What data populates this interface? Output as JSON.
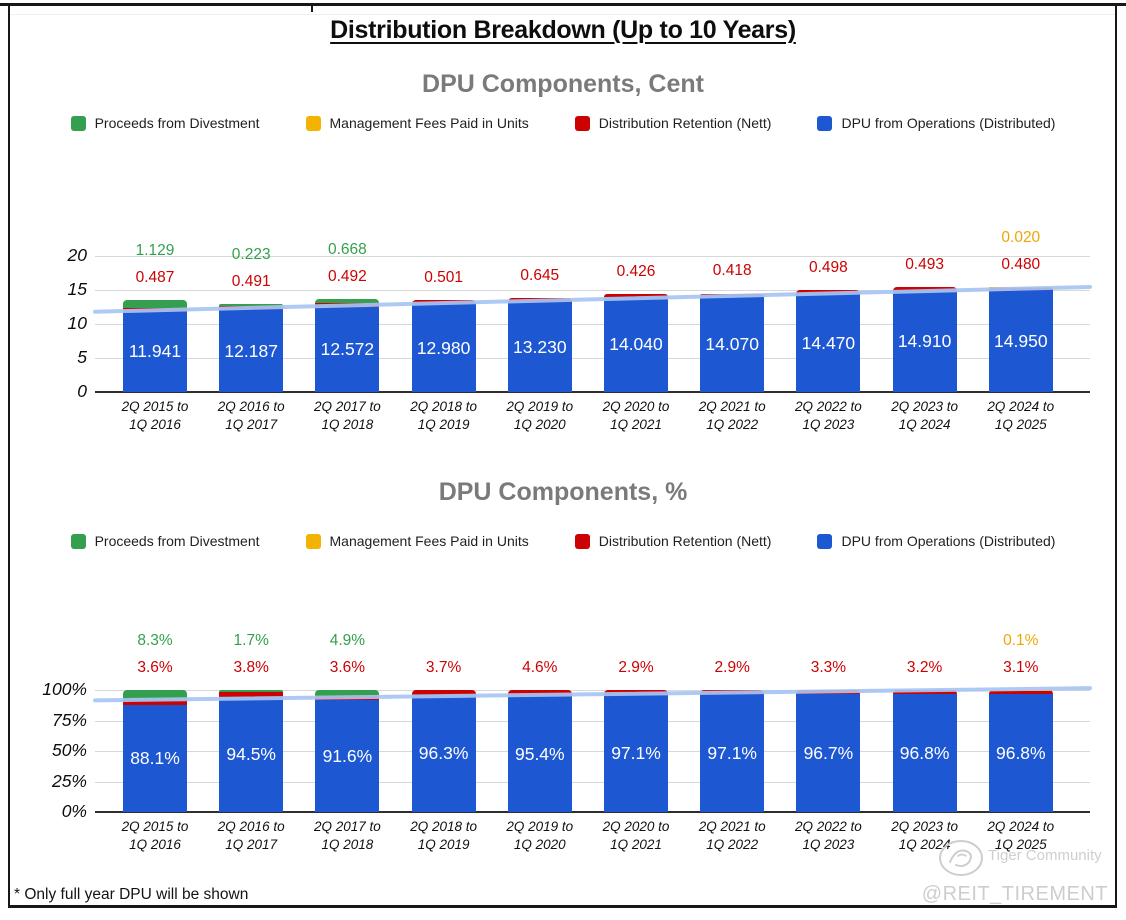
{
  "page": {
    "title": "Distribution Breakdown (Up to 10 Years)",
    "footnote": "* Only full year DPU will be shown",
    "watermark_community": "Tiger Community",
    "watermark_handle": "@REIT_TIREMENT"
  },
  "colors": {
    "divestment_green": "#34a04f",
    "mgmt_fees_yellow": "#f4b303",
    "retention_red": "#cc0202",
    "operations_blue": "#1d58d2",
    "trendline_blue": "#a8c6f4"
  },
  "legend": [
    {
      "label": "Proceeds from Divestment",
      "color": "#34a04f"
    },
    {
      "label": "Management Fees Paid in Units",
      "color": "#f4b303"
    },
    {
      "label": "Distribution Retention (Nett)",
      "color": "#cc0202"
    },
    {
      "label": "DPU from Operations (Distributed)",
      "color": "#1d58d2"
    }
  ],
  "chart_data": [
    {
      "type": "bar",
      "stacked": true,
      "title": "DPU Components, Cent",
      "grid": true,
      "legend_position": "top",
      "ylim": [
        0,
        20
      ],
      "y_ticks": [
        "20",
        "15",
        "10",
        "5",
        "0"
      ],
      "categories": [
        "2Q 2015 to 1Q 2016",
        "2Q 2016 to 1Q 2017",
        "2Q 2017 to 1Q 2018",
        "2Q 2018 to 1Q 2019",
        "2Q 2019 to 1Q 2020",
        "2Q 2020 to 1Q 2021",
        "2Q 2021 to 1Q 2022",
        "2Q 2022 to 1Q 2023",
        "2Q 2023 to 1Q 2024",
        "2Q 2024 to 1Q 2025"
      ],
      "series": [
        {
          "name": "DPU from Operations (Distributed)",
          "color": "#1d58d2",
          "label_color": "#ffffff",
          "label_pos": "inside",
          "values": [
            11.941,
            12.187,
            12.572,
            12.98,
            13.23,
            14.04,
            14.07,
            14.47,
            14.91,
            14.95
          ],
          "labels": [
            "11.941",
            "12.187",
            "12.572",
            "12.980",
            "13.230",
            "14.040",
            "14.070",
            "14.470",
            "14.910",
            "14.950"
          ]
        },
        {
          "name": "Distribution Retention (Nett)",
          "color": "#cc0202",
          "label_color": "#cc0202",
          "label_pos": "above1",
          "values": [
            0.487,
            0.491,
            0.492,
            0.501,
            0.645,
            0.426,
            0.418,
            0.498,
            0.493,
            0.48
          ],
          "labels": [
            "0.487",
            "0.491",
            "0.492",
            "0.501",
            "0.645",
            "0.426",
            "0.418",
            "0.498",
            "0.493",
            "0.480"
          ]
        },
        {
          "name": "Management Fees Paid in Units",
          "color": "#f4b303",
          "label_color": "#eda704",
          "label_pos": "above2",
          "values": [
            0,
            0,
            0,
            0,
            0,
            0,
            0,
            0,
            0,
            0.02
          ],
          "labels": [
            "",
            "",
            "",
            "",
            "",
            "",
            "",
            "",
            "",
            "0.020"
          ]
        },
        {
          "name": "Proceeds from Divestment",
          "color": "#34a04f",
          "label_color": "#34a04f",
          "label_pos": "above2",
          "values": [
            1.129,
            0.223,
            0.668,
            0,
            0,
            0,
            0,
            0,
            0,
            0
          ],
          "labels": [
            "1.129",
            "0.223",
            "0.668",
            "",
            "",
            "",
            "",
            "",
            "",
            ""
          ]
        }
      ],
      "trendline": {
        "color": "#a8c6f4",
        "start_value": 11.8,
        "end_value": 15.45
      }
    },
    {
      "type": "bar",
      "stacked": true,
      "title": "DPU Components, %",
      "grid": true,
      "legend_position": "top",
      "ylim": [
        0,
        100
      ],
      "y_ticks": [
        "100%",
        "75%",
        "50%",
        "25%",
        "0%"
      ],
      "categories": [
        "2Q 2015 to 1Q 2016",
        "2Q 2016 to 1Q 2017",
        "2Q 2017 to 1Q 2018",
        "2Q 2018 to 1Q 2019",
        "2Q 2019 to 1Q 2020",
        "2Q 2020 to 1Q 2021",
        "2Q 2021 to 1Q 2022",
        "2Q 2022 to 1Q 2023",
        "2Q 2023 to 1Q 2024",
        "2Q 2024 to 1Q 2025"
      ],
      "series": [
        {
          "name": "DPU from Operations (Distributed)",
          "color": "#1d58d2",
          "label_color": "#ffffff",
          "label_pos": "inside",
          "values": [
            88.1,
            94.5,
            91.6,
            96.3,
            95.4,
            97.1,
            97.1,
            96.7,
            96.8,
            96.8
          ],
          "labels": [
            "88.1%",
            "94.5%",
            "91.6%",
            "96.3%",
            "95.4%",
            "97.1%",
            "97.1%",
            "96.7%",
            "96.8%",
            "96.8%"
          ]
        },
        {
          "name": "Distribution Retention (Nett)",
          "color": "#cc0202",
          "label_color": "#cc0202",
          "label_pos": "above1",
          "values": [
            3.6,
            3.8,
            3.6,
            3.7,
            4.6,
            2.9,
            2.9,
            3.3,
            3.2,
            3.1
          ],
          "labels": [
            "3.6%",
            "3.8%",
            "3.6%",
            "3.7%",
            "4.6%",
            "2.9%",
            "2.9%",
            "3.3%",
            "3.2%",
            "3.1%"
          ]
        },
        {
          "name": "Management Fees Paid in Units",
          "color": "#f4b303",
          "label_color": "#eda704",
          "label_pos": "above2",
          "values": [
            0,
            0,
            0,
            0,
            0,
            0,
            0,
            0,
            0,
            0.1
          ],
          "labels": [
            "",
            "",
            "",
            "",
            "",
            "",
            "",
            "",
            "",
            "0.1%"
          ]
        },
        {
          "name": "Proceeds from Divestment",
          "color": "#34a04f",
          "label_color": "#34a04f",
          "label_pos": "above2",
          "values": [
            8.3,
            1.7,
            4.9,
            0,
            0,
            0,
            0,
            0,
            0,
            0
          ],
          "labels": [
            "8.3%",
            "1.7%",
            "4.9%",
            "",
            "",
            "",
            "",
            "",
            "",
            ""
          ]
        }
      ],
      "trendline": {
        "color": "#a8c6f4",
        "start_value": 91.5,
        "end_value": 101.5
      }
    }
  ]
}
